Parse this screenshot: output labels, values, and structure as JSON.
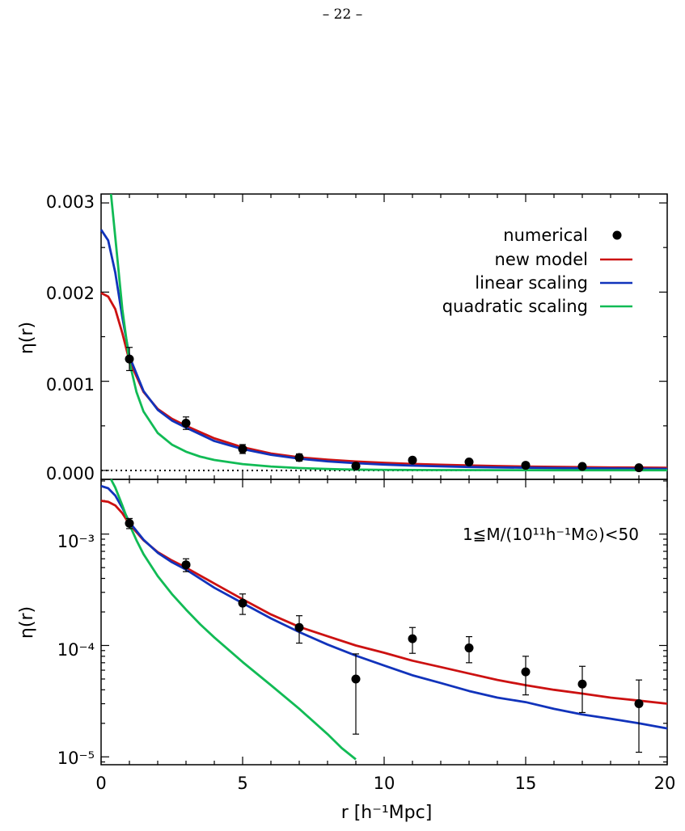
{
  "page_number": "– 22 –",
  "colors": {
    "new_model": "#cc1111",
    "linear_scaling": "#1133bb",
    "quadratic_scaling": "#11bb55",
    "numerical": "#000000"
  },
  "chart_data": [
    {
      "type": "line",
      "panel": "top",
      "ylabel": "η(r)",
      "xlim": [
        0,
        20
      ],
      "ylim": [
        -0.0001,
        0.0031
      ],
      "yticks": [
        0.0,
        0.001,
        0.002,
        0.003
      ],
      "ytick_labels": [
        "0.000",
        "0.001",
        "0.002",
        "0.003"
      ],
      "zero_line": "dotted",
      "legend": {
        "placement": "top-right",
        "entries": [
          {
            "label": "numerical",
            "marker": "dot",
            "color": "#000000"
          },
          {
            "label": "new model",
            "marker": "line",
            "color": "#cc1111"
          },
          {
            "label": "linear scaling",
            "marker": "line",
            "color": "#1133bb"
          },
          {
            "label": "quadratic scaling",
            "marker": "line",
            "color": "#11bb55"
          }
        ]
      },
      "points": [
        {
          "x": 1,
          "y": 0.00125,
          "lo": 0.00112,
          "hi": 0.00138
        },
        {
          "x": 3,
          "y": 0.00053,
          "lo": 0.00046,
          "hi": 0.0006
        },
        {
          "x": 5,
          "y": 0.00024,
          "lo": 0.00019,
          "hi": 0.00029
        },
        {
          "x": 7,
          "y": 0.000145,
          "lo": 0.000105,
          "hi": 0.000185
        },
        {
          "x": 9,
          "y": 5e-05,
          "lo": 1.6e-05,
          "hi": 8.4e-05
        },
        {
          "x": 11,
          "y": 0.000115,
          "lo": 8.5e-05,
          "hi": 0.000145
        },
        {
          "x": 13,
          "y": 9.5e-05,
          "lo": 7e-05,
          "hi": 0.00012
        },
        {
          "x": 15,
          "y": 5.8e-05,
          "lo": 3.6e-05,
          "hi": 8e-05
        },
        {
          "x": 17,
          "y": 4.5e-05,
          "lo": 2.5e-05,
          "hi": 6.5e-05
        },
        {
          "x": 19,
          "y": 3e-05,
          "lo": 1.1e-05,
          "hi": 4.9e-05
        }
      ],
      "series": [
        {
          "name": "new model",
          "color": "#cc1111",
          "x": [
            0,
            0.25,
            0.5,
            0.75,
            1,
            1.5,
            2,
            2.5,
            3,
            4,
            5,
            6,
            7,
            8,
            9,
            10,
            11,
            12,
            13,
            14,
            15,
            16,
            17,
            18,
            19,
            20
          ],
          "y": [
            0.00199,
            0.00195,
            0.00181,
            0.00154,
            0.00123,
            0.00088,
            0.00069,
            0.00058,
            0.0005,
            0.00036,
            0.00026,
            0.00019,
            0.000147,
            0.000121,
            0.0001,
            8.6e-05,
            7.3e-05,
            6.4e-05,
            5.6e-05,
            4.9e-05,
            4.4e-05,
            4e-05,
            3.7e-05,
            3.4e-05,
            3.2e-05,
            3e-05
          ]
        },
        {
          "name": "linear scaling",
          "color": "#1133bb",
          "x": [
            0,
            0.25,
            0.5,
            0.75,
            1,
            1.5,
            2,
            2.5,
            3,
            4,
            5,
            6,
            7,
            8,
            9,
            10,
            11,
            12,
            13,
            14,
            15,
            16,
            17,
            18,
            19,
            20
          ],
          "y": [
            0.0027,
            0.00258,
            0.00222,
            0.00172,
            0.00128,
            0.00089,
            0.00068,
            0.00056,
            0.00048,
            0.00033,
            0.00024,
            0.000175,
            0.000132,
            0.000102,
            8.1e-05,
            6.6e-05,
            5.4e-05,
            4.6e-05,
            3.9e-05,
            3.4e-05,
            3.1e-05,
            2.7e-05,
            2.4e-05,
            2.2e-05,
            2e-05,
            1.8e-05
          ]
        },
        {
          "name": "quadratic scaling",
          "color": "#11bb55",
          "x": [
            0.35,
            0.5,
            0.75,
            1,
            1.25,
            1.5,
            2,
            2.5,
            3,
            3.5,
            4,
            5,
            6,
            7,
            8,
            8.5,
            9,
            10,
            12,
            14,
            16,
            18,
            20
          ],
          "y": [
            0.0031,
            0.00262,
            0.00181,
            0.00122,
            0.00088,
            0.00066,
            0.00042,
            0.00029,
            0.00021,
            0.000155,
            0.000118,
            7.1e-05,
            4.4e-05,
            2.7e-05,
            1.6e-05,
            1.2e-05,
            9.5e-06,
            6.5e-06,
            4e-06,
            3e-06,
            2.5e-06,
            2e-06,
            2e-06
          ]
        }
      ]
    },
    {
      "type": "line",
      "panel": "bottom",
      "ylabel": "η(r)",
      "xlabel": "r [h⁻¹Mpc]",
      "xlim": [
        0,
        20
      ],
      "ylim": [
        8.5e-06,
        0.0031
      ],
      "yscale": "log",
      "xticks": [
        0,
        5,
        10,
        15,
        20
      ],
      "xtick_labels": [
        "0",
        "5",
        "10",
        "15",
        "20"
      ],
      "ytick_labels": [
        "10⁻³",
        "10⁻⁴",
        "10⁻⁵"
      ],
      "annotation": "1≦M/(10¹¹h⁻¹M⊙)<50"
    }
  ]
}
